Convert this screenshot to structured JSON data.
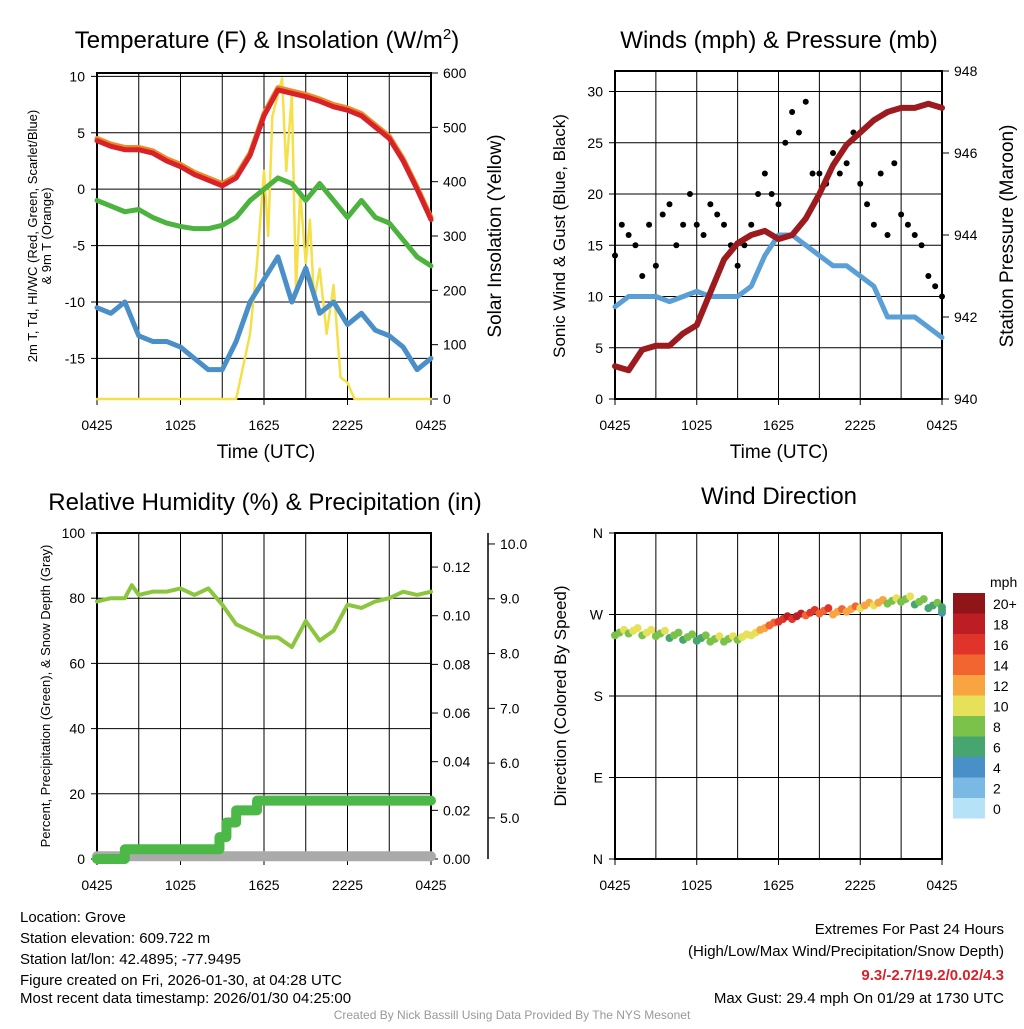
{
  "colors": {
    "temp": "#d62228",
    "temp9m": "#f08a24",
    "dew": "#4cb33f",
    "wc": "#4a8fc8",
    "solar": "#f5e04a",
    "wind": "#5a9fd6",
    "gust": "#000000",
    "pressure": "#9b1b1e",
    "rh": "#8cc63e",
    "precip": "#4cb848",
    "snow": "#aaaaaa"
  },
  "chart_data": [
    {
      "type": "line",
      "id": "temp",
      "title": "Temperature (F) & Insolation (W/m",
      "title_sup": "2",
      "title_end": ")",
      "xlabel": "Time (UTC)",
      "ylabel_line1": "2m T, Td, HI/WC (Red, Green, Scarlet/Blue)",
      "ylabel_line2": "& 9m T (Orange)",
      "ylabel_right": "Solar Insolation (Yellow)",
      "ylim": [
        -18.6,
        10.3
      ],
      "ylim_right": [
        0,
        600
      ],
      "yticks": [
        10,
        5,
        0,
        -5,
        -10,
        -15
      ],
      "yticks_right": [
        0,
        100,
        200,
        300,
        400,
        500,
        600
      ],
      "xticks": [
        "0425",
        "1025",
        "1625",
        "2225",
        "0425"
      ],
      "x_hours": [
        0,
        1,
        2,
        3,
        4,
        5,
        6,
        7,
        8,
        9,
        10,
        11,
        12,
        13,
        14,
        15,
        16,
        17,
        18,
        19,
        20,
        21,
        22,
        23,
        24
      ],
      "series": [
        {
          "name": "2m T",
          "color": "temp",
          "values": [
            4.3,
            3.8,
            3.5,
            3.5,
            3.2,
            2.5,
            2,
            1.3,
            0.8,
            0.3,
            1,
            3,
            6.5,
            8.8,
            8.5,
            8.2,
            7.8,
            7.3,
            7,
            6.5,
            5.5,
            4.5,
            2.5,
            0,
            -2.7
          ]
        },
        {
          "name": "Td",
          "color": "dew",
          "values": [
            -1,
            -1.5,
            -2,
            -1.8,
            -2.5,
            -3,
            -3.3,
            -3.5,
            -3.5,
            -3.2,
            -2.5,
            -1,
            0,
            1,
            0.5,
            -1,
            0.5,
            -1,
            -2.5,
            -1,
            -2.5,
            -3,
            -4.5,
            -6,
            -6.8
          ]
        },
        {
          "name": "WC",
          "color": "wc",
          "values": [
            -10.5,
            -11,
            -10,
            -13,
            -13.5,
            -13.5,
            -14,
            -15,
            -16,
            -16,
            -13.5,
            -10,
            -8,
            -6,
            -10,
            -7,
            -11,
            -10,
            -12,
            -11,
            -12.5,
            -13,
            -14,
            -16,
            -15
          ]
        }
      ],
      "solar": {
        "x": [
          0,
          10,
          10.5,
          11,
          11.5,
          12,
          12.3,
          12.6,
          13,
          13.3,
          13.6,
          14,
          14.3,
          14.6,
          15,
          15.3,
          15.6,
          16,
          16.5,
          17,
          17.5,
          18,
          18.5,
          24
        ],
        "values": [
          0,
          0,
          60,
          120,
          250,
          420,
          300,
          520,
          560,
          590,
          420,
          560,
          200,
          380,
          250,
          330,
          180,
          240,
          120,
          210,
          40,
          30,
          0,
          0
        ]
      }
    },
    {
      "type": "line",
      "id": "wind",
      "title": "Winds (mph) & Pressure (mb)",
      "xlabel": "Time (UTC)",
      "ylabel": "Sonic Wind & Gust (Blue, Black)",
      "ylabel_right": "Station Pressure (Maroon)",
      "ylim": [
        0,
        32
      ],
      "ylim_right": [
        940,
        948
      ],
      "yticks": [
        0,
        5,
        10,
        15,
        20,
        25,
        30
      ],
      "yticks_right": [
        940,
        942,
        944,
        946,
        948
      ],
      "xticks": [
        "0425",
        "1025",
        "1625",
        "2225",
        "0425"
      ],
      "wind": [
        9,
        10,
        10,
        10,
        9.5,
        10,
        10.5,
        10,
        10,
        10,
        11,
        14,
        16,
        16,
        15,
        14,
        13,
        13,
        12,
        11,
        8,
        8,
        8,
        7,
        6
      ],
      "gust": [
        14,
        17,
        16,
        15,
        12,
        17,
        13,
        18,
        19,
        15,
        17,
        20,
        17,
        16,
        19,
        18,
        17,
        15,
        13,
        15,
        17,
        20,
        22,
        20,
        19,
        25,
        28,
        26,
        29,
        22,
        22,
        21,
        24,
        22,
        23,
        26,
        21,
        19,
        17,
        22,
        16,
        23,
        18,
        17,
        16,
        15,
        12,
        11,
        10
      ],
      "pressure": [
        940.8,
        940.7,
        941.2,
        941.3,
        941.3,
        941.6,
        941.8,
        942.6,
        943.4,
        943.8,
        944,
        944.1,
        943.9,
        944,
        944.4,
        945,
        945.7,
        946.2,
        946.5,
        946.8,
        947,
        947.1,
        947.1,
        947.2,
        947.1
      ]
    },
    {
      "type": "line",
      "id": "rh",
      "title": "Relative Humidity (%) & Precipitation (in)",
      "ylabel": "Percent, Precipitation (Green), & Snow Depth (Gray)",
      "ylim": [
        0,
        100
      ],
      "yticks": [
        0,
        20,
        40,
        60,
        80,
        100
      ],
      "precip_ticks": [
        "0.00",
        "0.02",
        "0.04",
        "0.06",
        "0.08",
        "0.10",
        "0.12"
      ],
      "precip_lim": [
        0,
        0.134
      ],
      "snow_ticks": [
        "5.0",
        "6.0",
        "7.0",
        "8.0",
        "9.0",
        "10.0"
      ],
      "snow_lim": [
        4.25,
        10.2
      ],
      "xticks": [
        "0425",
        "1025",
        "1625",
        "2225",
        "0425"
      ],
      "rh": {
        "x": [
          0,
          1,
          2,
          2.5,
          3,
          4,
          5,
          6,
          7,
          8,
          9,
          10,
          11,
          12,
          13,
          14,
          15,
          16,
          17,
          18,
          19,
          20,
          21,
          22,
          23,
          24
        ],
        "values": [
          79,
          80,
          80,
          84,
          81,
          82,
          82,
          83,
          81,
          83,
          78,
          72,
          70,
          68,
          68,
          65,
          73,
          67,
          70,
          78,
          77,
          79,
          80,
          82,
          81,
          82
        ]
      },
      "precip": {
        "x": [
          0,
          2,
          2,
          8.8,
          8.8,
          9.3,
          9.3,
          10,
          10,
          11.5,
          11.5,
          12.5,
          12.5,
          24
        ],
        "values": [
          0,
          0,
          0.004,
          0.004,
          0.009,
          0.009,
          0.015,
          0.015,
          0.02,
          0.02,
          0.024,
          0.024,
          0.024,
          0.024
        ]
      },
      "snow": 4.3
    },
    {
      "type": "scatter",
      "id": "dir",
      "title": "Wind Direction",
      "ylabel": "Direction (Colored By Speed)",
      "yticks": [
        "N",
        "W",
        "S",
        "E",
        "N"
      ],
      "ytick_values": [
        360,
        270,
        180,
        90,
        0
      ],
      "xticks": [
        "0425",
        "1025",
        "1625",
        "2225",
        "0425"
      ],
      "dir": [
        250,
        252,
        250,
        249,
        247,
        245,
        244,
        243,
        243,
        245,
        250,
        258,
        265,
        268,
        272,
        274,
        273,
        276,
        280,
        283,
        285,
        287,
        284,
        280,
        275
      ],
      "speed": [
        9,
        10,
        10,
        9,
        8,
        8,
        7,
        9,
        9,
        10,
        11,
        14,
        17,
        18,
        16,
        15,
        13,
        13,
        12,
        12,
        9,
        9,
        8,
        7,
        6
      ],
      "legend_title": "mph",
      "legend": [
        "20+",
        "18",
        "16",
        "14",
        "12",
        "10",
        "8",
        "6",
        "4",
        "2",
        "0"
      ],
      "legend_colors": [
        "#8f1519",
        "#bd1e24",
        "#e0342b",
        "#f26430",
        "#f8a541",
        "#e7e15a",
        "#7ac24a",
        "#47a66f",
        "#4a90c8",
        "#7bb9e5",
        "#b6e2f8"
      ]
    }
  ],
  "footer": {
    "location": "Location: Grove",
    "elevation": "Station elevation: 609.722 m",
    "latlon": "Station lat/lon: 42.4895; -77.9495",
    "created": "Figure created on Fri, 2026-01-30, at 04:28 UTC",
    "recent": "Most recent data timestamp: 2026/01/30 04:25:00",
    "extremes_title": "Extremes For Past 24 Hours",
    "extremes_sub": "(High/Low/Max Wind/Precipitation/Snow Depth)",
    "extremes": "9.3/-2.7/19.2/0.02/4.3",
    "max_gust": "Max Gust: 29.4 mph On 01/29 at 1730 UTC",
    "credit": "Created By Nick Bassill Using Data Provided By The NYS Mesonet"
  }
}
